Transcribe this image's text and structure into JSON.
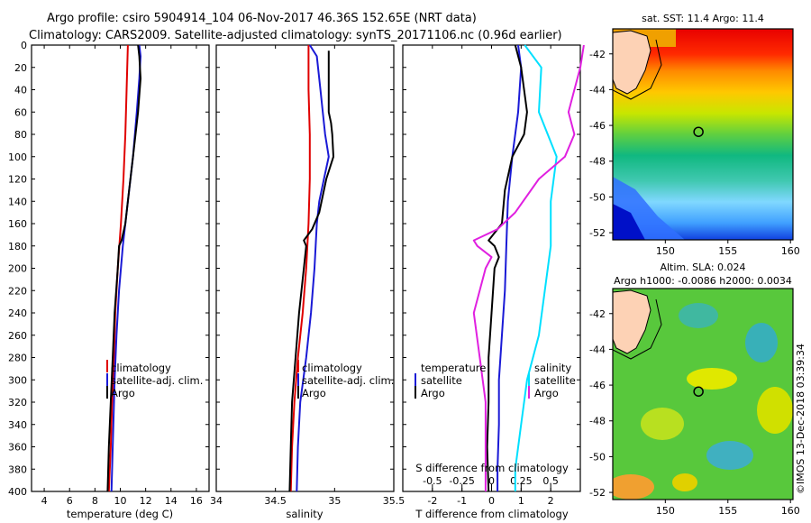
{
  "header": {
    "title_line1": "Argo profile: csiro 5904914_104 06-Nov-2017 46.36S 152.65E (NRT data)",
    "title_line2": "Climatology: CARS2009. Satellite-adjusted climatology: synTS_20171106.nc (0.96d earlier)"
  },
  "colors": {
    "climatology": "#e00000",
    "satellite_adj": "#1a1ad6",
    "argo": "#000000",
    "sal_satellite": "#00e0ff",
    "sal_argo": "#e020e0"
  },
  "chart_data": [
    {
      "type": "line",
      "name": "temperature",
      "xlabel": "temperature (deg C)",
      "ylabel": "",
      "xlim": [
        3,
        17
      ],
      "ylim": [
        400,
        0
      ],
      "xticks": [
        4,
        6,
        8,
        10,
        12,
        14,
        16
      ],
      "yticks": [
        0,
        20,
        40,
        60,
        80,
        100,
        120,
        140,
        160,
        180,
        200,
        220,
        240,
        260,
        280,
        300,
        320,
        340,
        360,
        380,
        400
      ],
      "legend": [
        "climatology",
        "satellite-adj. clim.",
        "Argo"
      ],
      "series": [
        {
          "name": "climatology",
          "depth": [
            0,
            40,
            80,
            120,
            160,
            200,
            240,
            280,
            320,
            360,
            400
          ],
          "values": [
            10.6,
            10.5,
            10.4,
            10.25,
            10.05,
            9.8,
            9.6,
            9.5,
            9.35,
            9.25,
            9.1
          ]
        },
        {
          "name": "satellite-adj. clim.",
          "depth": [
            0,
            10,
            30,
            60,
            100,
            140,
            180,
            220,
            260,
            300,
            340,
            380,
            400
          ],
          "values": [
            11.5,
            11.6,
            11.5,
            11.3,
            11.0,
            10.6,
            10.2,
            9.9,
            9.7,
            9.55,
            9.45,
            9.35,
            9.3
          ]
        },
        {
          "name": "Argo",
          "depth": [
            0,
            10,
            30,
            60,
            100,
            130,
            160,
            175,
            180,
            200,
            240,
            280,
            320,
            360,
            400
          ],
          "values": [
            11.4,
            11.5,
            11.6,
            11.4,
            11.0,
            10.7,
            10.4,
            10.1,
            9.9,
            9.8,
            9.55,
            9.4,
            9.25,
            9.1,
            9.0
          ]
        }
      ]
    },
    {
      "type": "line",
      "name": "salinity",
      "xlabel": "salinity",
      "xlim": [
        34,
        35.5
      ],
      "ylim": [
        400,
        0
      ],
      "xticks": [
        34,
        34.5,
        35,
        35.5
      ],
      "xticklabels": [
        "34",
        "34.5",
        "35",
        "35.5"
      ],
      "legend": [
        "climatology",
        "satellite-adj. clim.",
        "Argo"
      ],
      "series": [
        {
          "name": "climatology",
          "depth": [
            0,
            40,
            80,
            120,
            160,
            200,
            240,
            280,
            320,
            360,
            400
          ],
          "values": [
            34.78,
            34.78,
            34.79,
            34.79,
            34.78,
            34.76,
            34.73,
            34.69,
            34.66,
            34.64,
            34.63
          ]
        },
        {
          "name": "satellite-adj. clim.",
          "depth": [
            0,
            10,
            40,
            60,
            80,
            100,
            120,
            140,
            160,
            180,
            200,
            240,
            280,
            320,
            360,
            400
          ],
          "values": [
            34.79,
            34.85,
            34.88,
            34.9,
            34.92,
            34.95,
            34.91,
            34.87,
            34.85,
            34.84,
            34.83,
            34.8,
            34.76,
            34.71,
            34.69,
            34.68
          ]
        },
        {
          "name": "Argo",
          "depth": [
            5,
            20,
            40,
            60,
            70,
            80,
            100,
            120,
            150,
            165,
            175,
            180,
            200,
            240,
            280,
            320,
            360,
            400
          ],
          "values": [
            34.95,
            34.95,
            34.95,
            34.95,
            34.97,
            34.98,
            34.99,
            34.93,
            34.87,
            34.81,
            34.74,
            34.76,
            34.74,
            34.7,
            34.67,
            34.64,
            34.63,
            34.62
          ]
        }
      ]
    },
    {
      "type": "line",
      "name": "difference",
      "xlabel": "T difference from climatology",
      "xlabel_top": "S difference from climatology",
      "xlim": [
        -3,
        3
      ],
      "ylim": [
        400,
        0
      ],
      "xticks": [
        -2,
        -1,
        0,
        1,
        2
      ],
      "top_ticks": [
        -0.5,
        -0.25,
        0,
        0.25,
        0.5
      ],
      "top_ticklabels": [
        "-0.5",
        "-0.25",
        "0",
        "0.25",
        "0.5"
      ],
      "legend_left_title": "temperature",
      "legend_right_title": "salinity",
      "legend_left": [
        "satellite",
        "Argo"
      ],
      "legend_right": [
        "satellite",
        "Argo"
      ],
      "series": [
        {
          "name": "T satellite",
          "depth": [
            0,
            20,
            60,
            100,
            140,
            180,
            220,
            260,
            300,
            340,
            380,
            400
          ],
          "values": [
            0.9,
            1.0,
            0.9,
            0.7,
            0.55,
            0.5,
            0.45,
            0.35,
            0.25,
            0.25,
            0.2,
            0.2
          ]
        },
        {
          "name": "T Argo",
          "depth": [
            0,
            20,
            40,
            60,
            80,
            100,
            130,
            160,
            175,
            180,
            190,
            200,
            240,
            280,
            320,
            360,
            400
          ],
          "values": [
            0.8,
            1.0,
            1.1,
            1.2,
            1.1,
            0.7,
            0.45,
            0.35,
            -0.1,
            0.1,
            0.25,
            0.1,
            0.0,
            -0.1,
            -0.1,
            -0.15,
            -0.1
          ]
        },
        {
          "name": "S satellite",
          "depth": [
            0,
            20,
            60,
            100,
            140,
            180,
            220,
            260,
            300,
            340,
            380,
            400
          ],
          "values": [
            0.28,
            0.42,
            0.4,
            0.55,
            0.5,
            0.5,
            0.45,
            0.4,
            0.3,
            0.25,
            0.2,
            0.2
          ]
        },
        {
          "name": "S Argo",
          "depth": [
            0,
            20,
            40,
            60,
            80,
            100,
            120,
            150,
            165,
            175,
            180,
            190,
            200,
            240,
            280,
            320,
            360,
            400
          ],
          "values": [
            0.78,
            0.75,
            0.7,
            0.65,
            0.7,
            0.62,
            0.4,
            0.2,
            0.05,
            -0.15,
            -0.12,
            0.0,
            -0.05,
            -0.15,
            -0.1,
            -0.05,
            -0.05,
            -0.05
          ]
        }
      ]
    },
    {
      "type": "heatmap",
      "name": "sst-map",
      "title": "sat. SST: 11.4 Argo: 11.4",
      "xticks": [
        150,
        155,
        160
      ],
      "yticks": [
        -42,
        -44,
        -46,
        -48,
        -50,
        -52
      ],
      "marker": {
        "lon": 152.65,
        "lat": -46.36
      }
    },
    {
      "type": "heatmap",
      "name": "sla-map",
      "title_line1": "Altim. SLA: 0.024",
      "title_line2": "Argo h1000: -0.0086 h2000: 0.0034",
      "xticks": [
        150,
        155,
        160
      ],
      "yticks": [
        -42,
        -44,
        -46,
        -48,
        -50,
        -52
      ],
      "marker": {
        "lon": 152.65,
        "lat": -46.36
      }
    }
  ],
  "footer": {
    "copyright": "©IMOS 13-Dec-2018 03:39:34"
  }
}
